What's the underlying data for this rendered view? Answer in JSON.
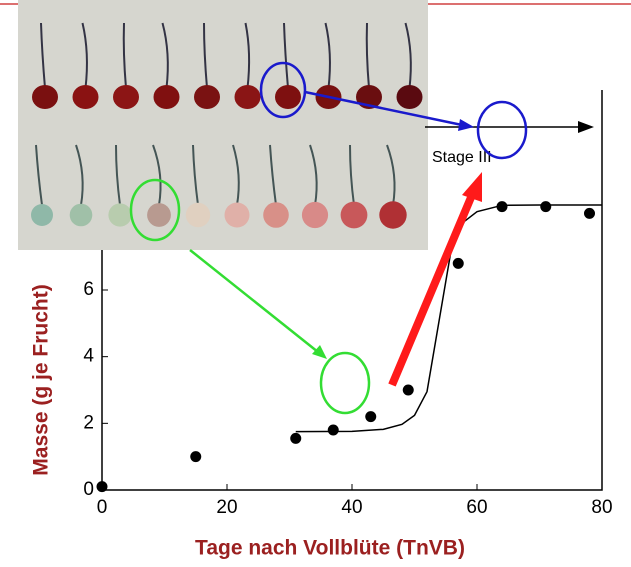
{
  "chart_data": {
    "type": "scatter",
    "xlabel": "Tage nach Vollblüte (TnVB)",
    "ylabel": "Masse (g je Frucht)",
    "annotation": "Stage III",
    "x": [
      0,
      15,
      31,
      37,
      43,
      49,
      57,
      64,
      71,
      78
    ],
    "values": [
      0.1,
      1.0,
      1.55,
      1.8,
      2.2,
      3.0,
      6.8,
      8.5,
      8.5,
      8.3
    ],
    "color": "#000000",
    "fit": {
      "x": [
        31,
        40,
        45,
        48,
        50,
        52,
        54,
        56,
        58,
        60,
        64,
        70,
        80
      ],
      "values": [
        1.75,
        1.76,
        1.82,
        1.97,
        2.24,
        2.95,
        5.15,
        7.35,
        8.06,
        8.35,
        8.54,
        8.55,
        8.55
      ],
      "color": "#000000"
    },
    "xlim": [
      0,
      80
    ],
    "ylim": [
      0,
      12
    ],
    "xticks": [
      0,
      20,
      40,
      60,
      80
    ],
    "yticks": [
      0,
      2,
      4,
      6
    ]
  }
}
